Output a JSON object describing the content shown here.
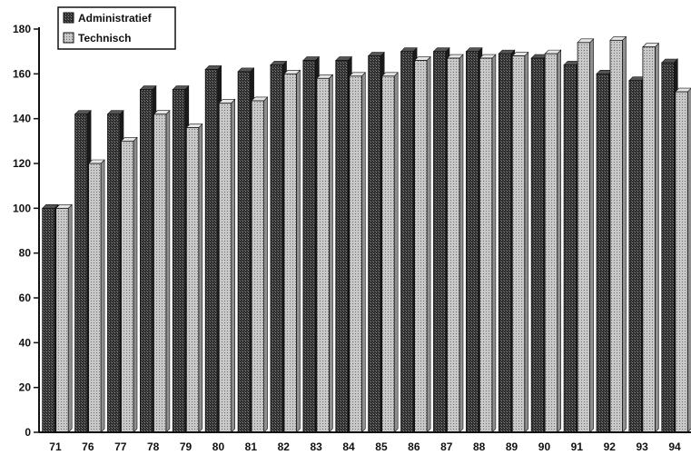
{
  "chart_data": {
    "type": "bar",
    "categories": [
      "71",
      "76",
      "77",
      "78",
      "79",
      "80",
      "81",
      "82",
      "83",
      "84",
      "85",
      "86",
      "87",
      "88",
      "89",
      "90",
      "91",
      "92",
      "93",
      "94"
    ],
    "series": [
      {
        "name": "Administratief",
        "values": [
          100,
          142,
          142,
          153,
          153,
          162,
          161,
          164,
          166,
          166,
          168,
          170,
          170,
          170,
          169,
          167,
          164,
          160,
          157,
          165
        ],
        "color": "#3a3a3a"
      },
      {
        "name": "Technisch",
        "values": [
          100,
          120,
          130,
          142,
          136,
          147,
          148,
          160,
          158,
          159,
          159,
          166,
          167,
          167,
          168,
          169,
          174,
          175,
          172,
          152
        ],
        "color": "#bdbdbd"
      }
    ],
    "title": "",
    "xlabel": "",
    "ylabel": "",
    "ylim": [
      0,
      180
    ],
    "yticks": [
      0,
      20,
      40,
      60,
      80,
      100,
      120,
      140,
      160,
      180
    ],
    "grid": false,
    "legend_position": "top-left"
  }
}
